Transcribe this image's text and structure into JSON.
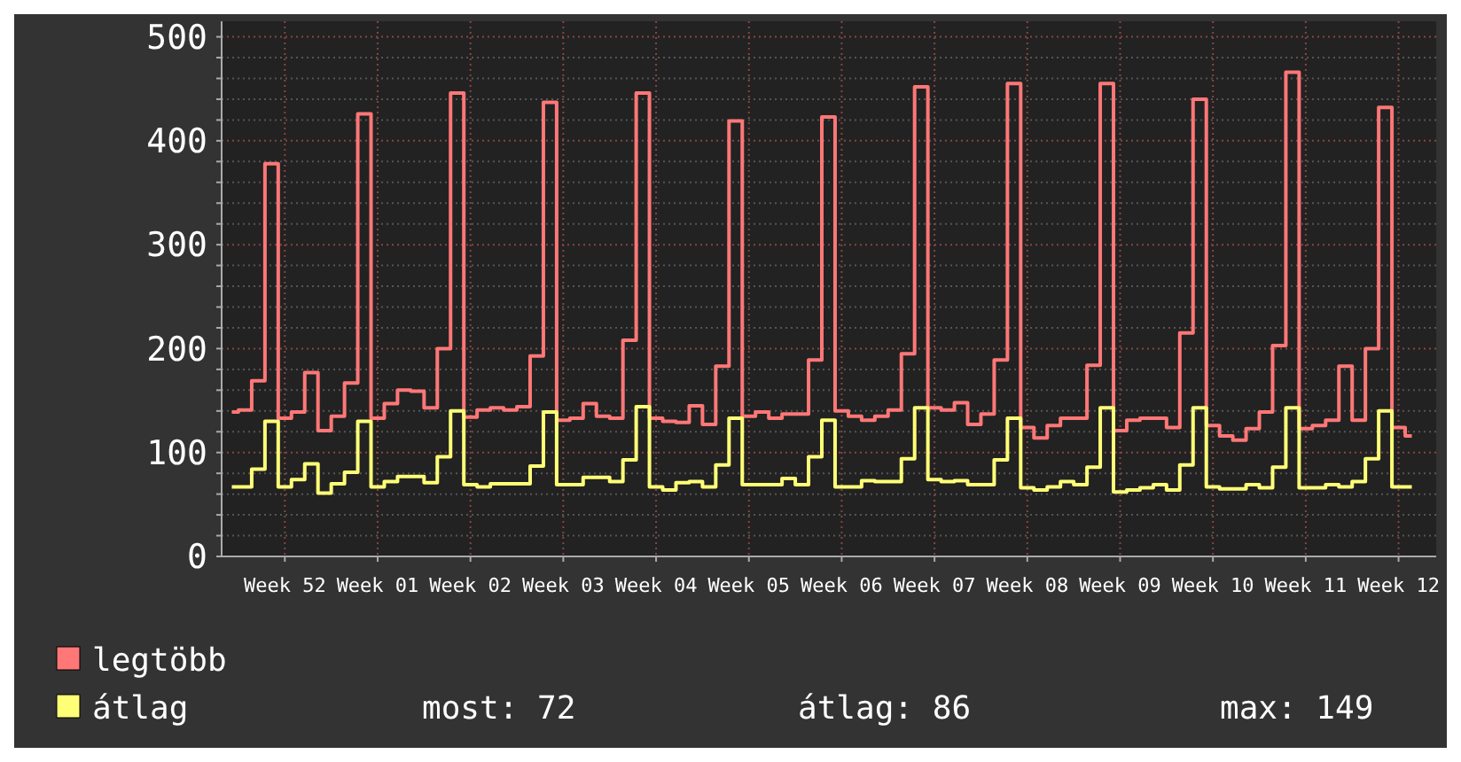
{
  "chart_data": {
    "type": "step",
    "categories": [
      null,
      null,
      null,
      null,
      "Week 52",
      null,
      null,
      null,
      null,
      null,
      null,
      "Week 01",
      null,
      null,
      null,
      null,
      null,
      null,
      "Week 02",
      null,
      null,
      null,
      null,
      null,
      null,
      "Week 03",
      null,
      null,
      null,
      null,
      null,
      null,
      "Week 04",
      null,
      null,
      null,
      null,
      null,
      null,
      "Week 05",
      null,
      null,
      null,
      null,
      null,
      null,
      "Week 06",
      null,
      null,
      null,
      null,
      null,
      null,
      "Week 07",
      null,
      null,
      null,
      null,
      null,
      null,
      "Week 08",
      null,
      null,
      null,
      null,
      null,
      null,
      "Week 09",
      null,
      null,
      null,
      null,
      null,
      null,
      "Week 10",
      null,
      null,
      null,
      null,
      null,
      null,
      "Week 11",
      null,
      null,
      null,
      null,
      null,
      null,
      "Week 12",
      null
    ],
    "series": [
      {
        "name": "legtöbb",
        "color": "#ff7777",
        "values": [
          139,
          141,
          169,
          378,
          133,
          139,
          177,
          121,
          135,
          167,
          426,
          133,
          147,
          160,
          159,
          143,
          200,
          446,
          134,
          141,
          143,
          141,
          144,
          193,
          437,
          131,
          133,
          147,
          135,
          133,
          208,
          446,
          133,
          130,
          129,
          145,
          127,
          183,
          419,
          135,
          139,
          133,
          137,
          137,
          189,
          423,
          140,
          135,
          131,
          135,
          141,
          195,
          452,
          143,
          141,
          148,
          127,
          137,
          189,
          455,
          124,
          114,
          126,
          133,
          133,
          184,
          455,
          121,
          131,
          133,
          133,
          124,
          215,
          440,
          126,
          116,
          112,
          123,
          139,
          203,
          466,
          123,
          126,
          131,
          183,
          131,
          200,
          432,
          124,
          116
        ]
      },
      {
        "name": "átlag",
        "color": "#ffff77",
        "values": [
          67,
          67,
          84,
          130,
          67,
          74,
          89,
          61,
          70,
          81,
          130,
          67,
          72,
          77,
          77,
          71,
          96,
          140,
          69,
          67,
          70,
          70,
          70,
          87,
          139,
          69,
          69,
          76,
          76,
          72,
          93,
          144,
          67,
          64,
          71,
          72,
          67,
          88,
          133,
          69,
          69,
          69,
          75,
          69,
          96,
          131,
          67,
          67,
          73,
          72,
          72,
          94,
          143,
          74,
          72,
          73,
          69,
          69,
          93,
          133,
          66,
          64,
          67,
          72,
          69,
          86,
          143,
          62,
          64,
          66,
          69,
          64,
          88,
          143,
          67,
          65,
          65,
          69,
          66,
          86,
          143,
          66,
          66,
          69,
          67,
          72,
          94,
          140,
          67,
          67
        ]
      }
    ],
    "ylim": [
      0,
      515
    ],
    "yticks": [
      0,
      {
        "value": 20,
        "label": null
      },
      {
        "value": 40,
        "label": null
      },
      {
        "value": 60,
        "label": null
      },
      {
        "value": 80,
        "label": null
      },
      100,
      {
        "value": 120,
        "label": null
      },
      {
        "value": 140,
        "label": null
      },
      {
        "value": 160,
        "label": null
      },
      {
        "value": 180,
        "label": null
      },
      200,
      {
        "value": 220,
        "label": null
      },
      {
        "value": 240,
        "label": null
      },
      {
        "value": 260,
        "label": null
      },
      {
        "value": 280,
        "label": null
      },
      300,
      {
        "value": 320,
        "label": null
      },
      {
        "value": 340,
        "label": null
      },
      {
        "value": 360,
        "label": null
      },
      {
        "value": 380,
        "label": null
      },
      400,
      {
        "value": 420,
        "label": null
      },
      {
        "value": 440,
        "label": null
      },
      {
        "value": 460,
        "label": null
      },
      {
        "value": 480,
        "label": null
      },
      500
    ],
    "grid": true,
    "legend": "bottom",
    "annotations": [
      "most: 72",
      "átlag: 86",
      "max: 149"
    ]
  }
}
